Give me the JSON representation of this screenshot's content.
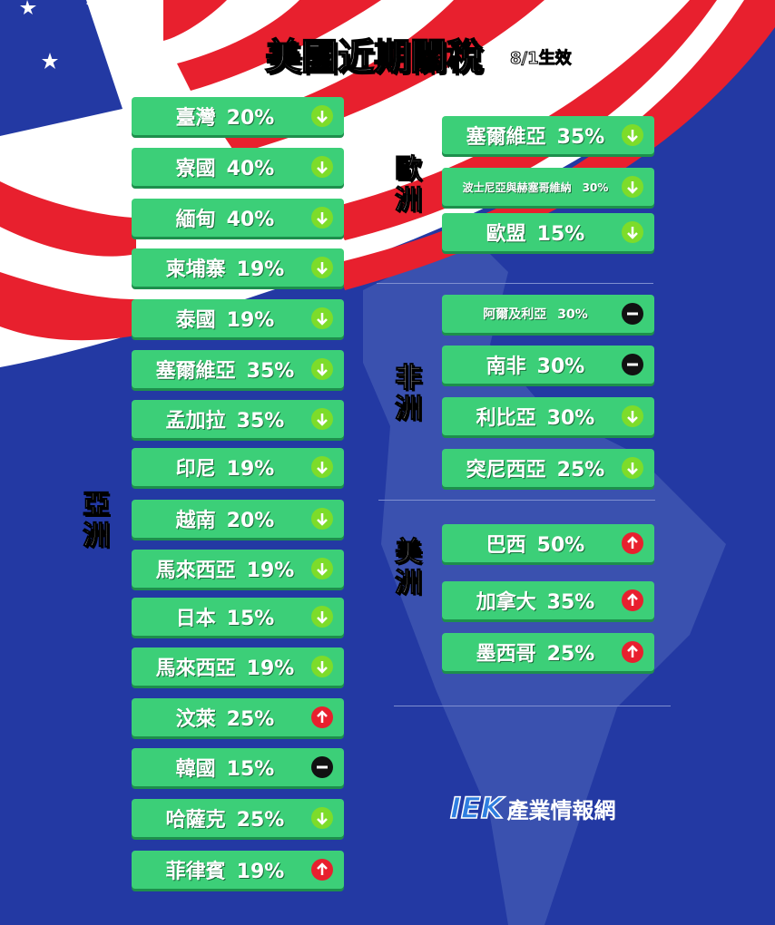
{
  "title": "美國近期關稅",
  "subtitle": "8/1生效",
  "regions": [
    {
      "label": "亞洲",
      "items": [
        {
          "name": "臺灣",
          "rate": "20%",
          "trend": "down"
        },
        {
          "name": "寮國",
          "rate": "40%",
          "trend": "down"
        },
        {
          "name": "緬甸",
          "rate": "40%",
          "trend": "down"
        },
        {
          "name": "柬埔寨",
          "rate": "19%",
          "trend": "down"
        },
        {
          "name": "泰國",
          "rate": "19%",
          "trend": "down"
        },
        {
          "name": "塞爾維亞",
          "rate": "35%",
          "trend": "down"
        },
        {
          "name": "孟加拉",
          "rate": "35%",
          "trend": "down"
        },
        {
          "name": "印尼",
          "rate": "19%",
          "trend": "down"
        },
        {
          "name": "越南",
          "rate": "20%",
          "trend": "down"
        },
        {
          "name": "馬來西亞",
          "rate": "19%",
          "trend": "down"
        },
        {
          "name": "日本",
          "rate": "15%",
          "trend": "down"
        },
        {
          "name": "馬來西亞",
          "rate": "19%",
          "trend": "down"
        },
        {
          "name": "汶萊",
          "rate": "25%",
          "trend": "up"
        },
        {
          "name": "韓國",
          "rate": "15%",
          "trend": "flat"
        },
        {
          "name": "哈薩克",
          "rate": "25%",
          "trend": "down"
        },
        {
          "name": "菲律賓",
          "rate": "19%",
          "trend": "up"
        }
      ]
    },
    {
      "label": "歐洲",
      "items": [
        {
          "name": "塞爾維亞",
          "rate": "35%",
          "trend": "down"
        },
        {
          "name": "波士尼亞與赫塞哥維納",
          "rate": "30%",
          "trend": "down"
        },
        {
          "name": "歐盟",
          "rate": "15%",
          "trend": "down"
        }
      ]
    },
    {
      "label": "非洲",
      "items": [
        {
          "name": "阿爾及利亞",
          "rate": "30%",
          "trend": "flat"
        },
        {
          "name": "南非",
          "rate": "30%",
          "trend": "flat"
        },
        {
          "name": "利比亞",
          "rate": "30%",
          "trend": "down"
        },
        {
          "name": "突尼西亞",
          "rate": "25%",
          "trend": "down"
        }
      ]
    },
    {
      "label": "美洲",
      "items": [
        {
          "name": "巴西",
          "rate": "50%",
          "trend": "up"
        },
        {
          "name": "加拿大",
          "rate": "35%",
          "trend": "up"
        },
        {
          "name": "墨西哥",
          "rate": "25%",
          "trend": "up"
        }
      ]
    }
  ],
  "logo": {
    "brand": "IEK",
    "text": "產業情報網"
  }
}
